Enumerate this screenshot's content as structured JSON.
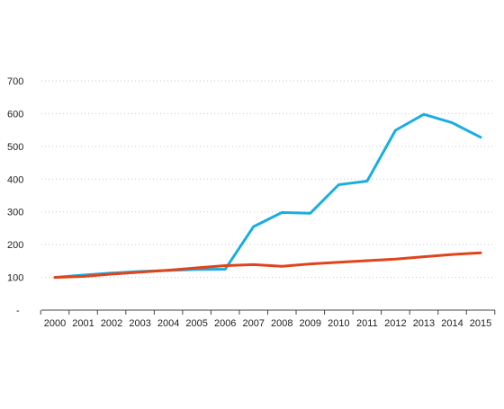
{
  "chart_data": {
    "type": "line",
    "x": [
      "2000",
      "2001",
      "2002",
      "2003",
      "2004",
      "2005",
      "2006",
      "2007",
      "2008",
      "2009",
      "2010",
      "2011",
      "2012",
      "2013",
      "2014",
      "2015"
    ],
    "series": [
      {
        "color": "#1aaee0",
        "values": [
          100,
          107,
          113,
          118,
          121,
          124,
          125,
          255,
          298,
          296,
          383,
          394,
          549,
          598,
          572,
          528
        ]
      },
      {
        "color": "#e0441c",
        "values": [
          100,
          103,
          110,
          116,
          122,
          129,
          136,
          139,
          134,
          141,
          146,
          151,
          156,
          163,
          170,
          175
        ]
      }
    ],
    "yticks": [
      "-",
      "100",
      "200",
      "300",
      "400",
      "500",
      "600",
      "700"
    ],
    "ylim": [
      0,
      700
    ],
    "grid": true,
    "title": "",
    "xlabel": "",
    "ylabel": ""
  }
}
